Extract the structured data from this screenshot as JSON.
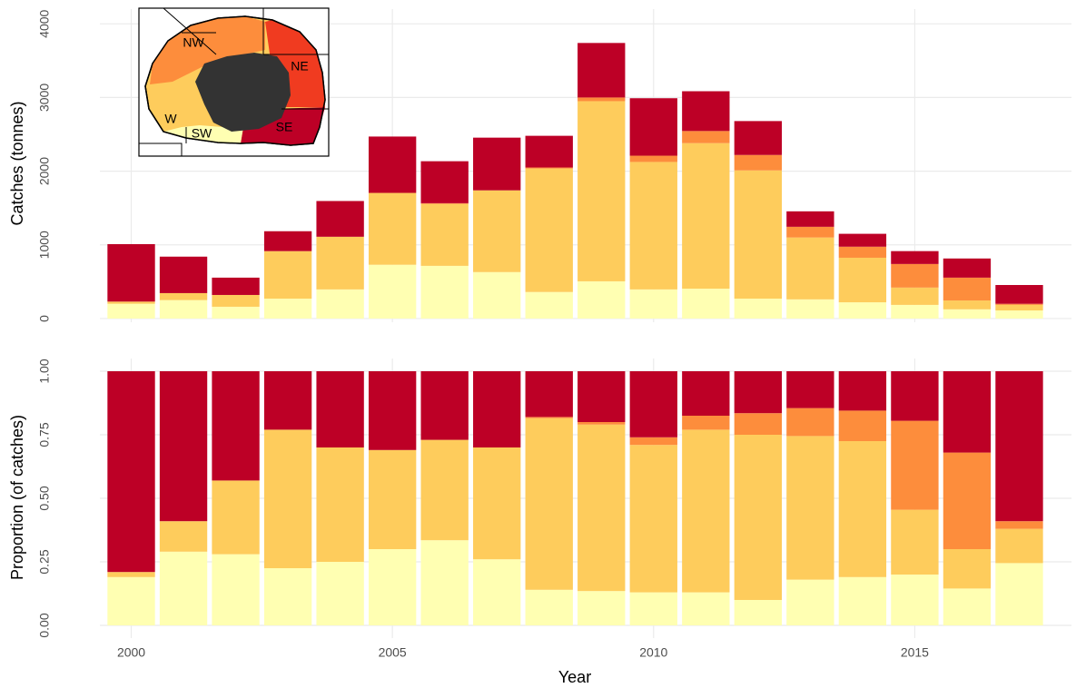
{
  "chart_data": [
    {
      "type": "stacked_bar",
      "y_label": "Catches (tonnes)",
      "x": [
        2000,
        2001,
        2002,
        2003,
        2004,
        2005,
        2006,
        2007,
        2008,
        2009,
        2010,
        2011,
        2012,
        2013,
        2014,
        2015,
        2016,
        2017
      ],
      "xlim": [
        1999.4,
        2018.0
      ],
      "xticks": [
        2000,
        2005,
        2010,
        2015
      ],
      "ylim": [
        -50,
        4200
      ],
      "yticks": [
        0,
        1000,
        2000,
        3000,
        4000
      ],
      "grid": true,
      "map_label_ne": "NE",
      "series": [
        {
          "name": "SW",
          "color": "#ffffb2",
          "values": [
            200,
            250,
            160,
            270,
            395,
            730,
            715,
            630,
            360,
            505,
            395,
            405,
            270,
            260,
            220,
            185,
            125,
            110
          ]
        },
        {
          "name": "W",
          "color": "#fecc5c",
          "values": [
            30,
            95,
            160,
            645,
            715,
            975,
            840,
            1110,
            1675,
            2445,
            1730,
            1975,
            1740,
            840,
            605,
            235,
            120,
            75
          ]
        },
        {
          "name": "NW",
          "color": "#fd8d3c",
          "values": [
            0,
            0,
            0,
            0,
            0,
            0,
            10,
            0,
            15,
            50,
            85,
            165,
            210,
            145,
            150,
            320,
            310,
            15
          ]
        },
        {
          "name": "SE",
          "color": "#bd0026",
          "values": [
            780,
            495,
            235,
            270,
            485,
            765,
            570,
            715,
            430,
            740,
            780,
            540,
            460,
            210,
            175,
            175,
            260,
            255
          ]
        }
      ]
    },
    {
      "type": "stacked_bar",
      "x_label": "Year",
      "y_label": "Proportion (of catches)",
      "x": [
        2000,
        2001,
        2002,
        2003,
        2004,
        2005,
        2006,
        2007,
        2008,
        2009,
        2010,
        2011,
        2012,
        2013,
        2014,
        2015,
        2016,
        2017
      ],
      "xlim": [
        1999.4,
        2018.0
      ],
      "xticks": [
        2000,
        2005,
        2010,
        2015
      ],
      "ylim": [
        -0.05,
        1.05
      ],
      "yticks": [
        {
          "value": 0,
          "label": "0.00"
        },
        {
          "value": 0.25,
          "label": "0.25"
        },
        {
          "value": 0.5,
          "label": "0.50"
        },
        {
          "value": 0.75,
          "label": "0.75"
        },
        {
          "value": 1,
          "label": "1.00"
        }
      ],
      "grid": true,
      "series": [
        {
          "color": "#ffffb2",
          "values": [
            0.19,
            0.29,
            0.28,
            0.225,
            0.25,
            0.3,
            0.335,
            0.26,
            0.14,
            0.135,
            0.13,
            0.13,
            0.1,
            0.18,
            0.19,
            0.2,
            0.145,
            0.245
          ]
        },
        {
          "color": "#fecc5c",
          "values": [
            0.02,
            0.12,
            0.29,
            0.545,
            0.45,
            0.39,
            0.395,
            0.44,
            0.675,
            0.655,
            0.58,
            0.64,
            0.65,
            0.565,
            0.535,
            0.255,
            0.155,
            0.135
          ]
        },
        {
          "color": "#fd8d3c",
          "values": [
            0,
            0,
            0,
            0,
            0,
            0,
            0,
            0,
            0.005,
            0.01,
            0.03,
            0.055,
            0.085,
            0.11,
            0.12,
            0.35,
            0.38,
            0.03
          ]
        },
        {
          "color": "#bd0026",
          "values": [
            0.79,
            0.59,
            0.43,
            0.23,
            0.3,
            0.31,
            0.27,
            0.3,
            0.18,
            0.2,
            0.26,
            0.175,
            0.165,
            0.145,
            0.155,
            0.195,
            0.32,
            0.59
          ]
        }
      ]
    }
  ]
}
